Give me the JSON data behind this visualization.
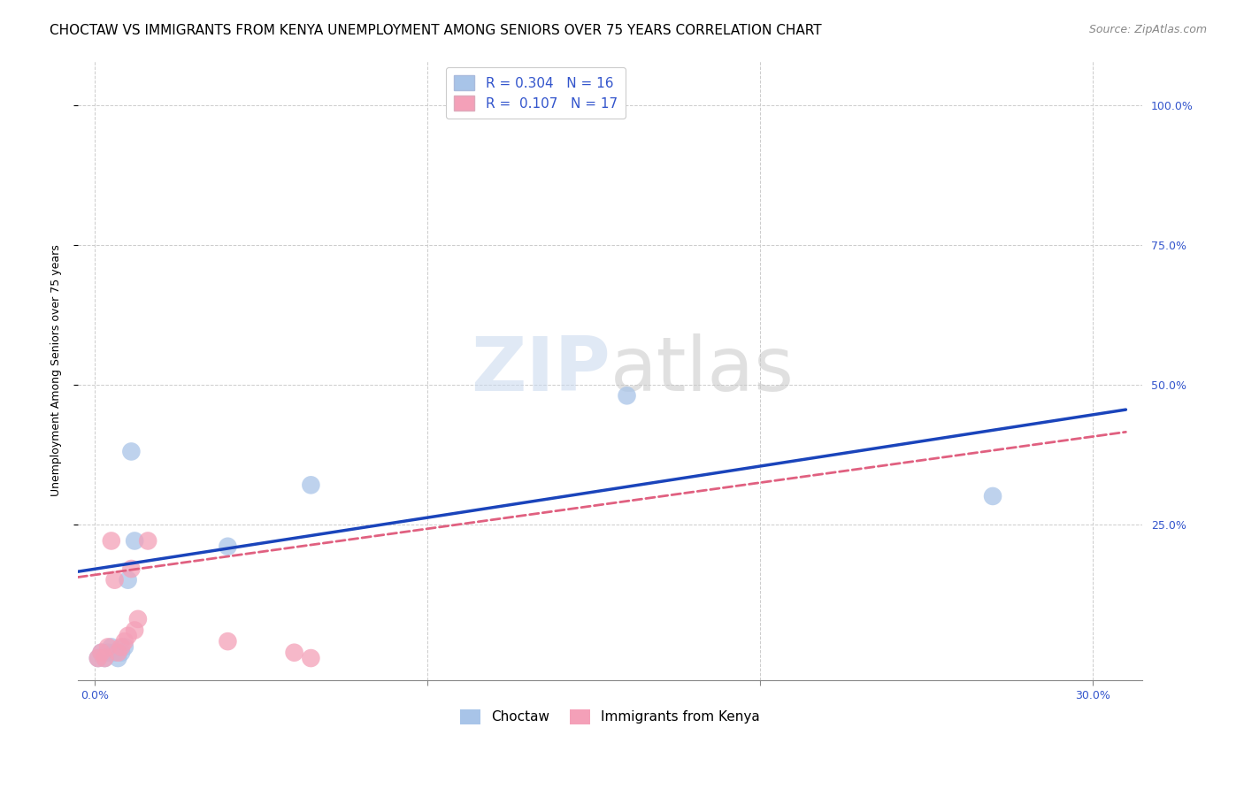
{
  "title": "CHOCTAW VS IMMIGRANTS FROM KENYA UNEMPLOYMENT AMONG SENIORS OVER 75 YEARS CORRELATION CHART",
  "source": "Source: ZipAtlas.com",
  "ylabel": "Unemployment Among Seniors over 75 years",
  "xlabel_ticks_show": [
    "0.0%",
    "30.0%"
  ],
  "xlabel_ticks_minor": [
    0.1,
    0.2
  ],
  "xlabel_ticks_major": [
    0.0,
    0.3
  ],
  "ylabel_ticks": [
    "100.0%",
    "75.0%",
    "50.0%",
    "25.0%"
  ],
  "ylabel_vals": [
    1.0,
    0.75,
    0.5,
    0.25
  ],
  "choctaw_R": 0.304,
  "choctaw_N": 16,
  "kenya_R": 0.107,
  "kenya_N": 17,
  "choctaw_color": "#a8c4e8",
  "kenya_color": "#f4a0b8",
  "choctaw_line_color": "#1a44bb",
  "kenya_line_color": "#e06080",
  "choctaw_x": [
    0.001,
    0.002,
    0.003,
    0.004,
    0.005,
    0.006,
    0.007,
    0.008,
    0.009,
    0.01,
    0.011,
    0.012,
    0.04,
    0.065,
    0.16,
    0.27
  ],
  "choctaw_y": [
    0.01,
    0.02,
    0.01,
    0.02,
    0.03,
    0.02,
    0.01,
    0.02,
    0.03,
    0.15,
    0.38,
    0.22,
    0.21,
    0.32,
    0.48,
    0.3
  ],
  "kenya_x": [
    0.001,
    0.002,
    0.003,
    0.004,
    0.005,
    0.006,
    0.007,
    0.008,
    0.009,
    0.01,
    0.011,
    0.012,
    0.013,
    0.016,
    0.04,
    0.06,
    0.065
  ],
  "kenya_y": [
    0.01,
    0.02,
    0.01,
    0.03,
    0.22,
    0.15,
    0.02,
    0.03,
    0.04,
    0.05,
    0.17,
    0.06,
    0.08,
    0.22,
    0.04,
    0.02,
    0.01
  ],
  "choctaw_line_x0": -0.005,
  "choctaw_line_x1": 0.31,
  "choctaw_line_y0": 0.165,
  "choctaw_line_y1": 0.455,
  "kenya_line_x0": -0.005,
  "kenya_line_x1": 0.31,
  "kenya_line_y0": 0.155,
  "kenya_line_y1": 0.415,
  "xlim": [
    -0.005,
    0.315
  ],
  "ylim": [
    -0.03,
    1.08
  ],
  "legend_label_choctaw": "Choctaw",
  "legend_label_kenya": "Immigrants from Kenya",
  "title_fontsize": 11,
  "source_fontsize": 9,
  "axis_label_fontsize": 9,
  "tick_fontsize": 9,
  "legend_fontsize": 11
}
